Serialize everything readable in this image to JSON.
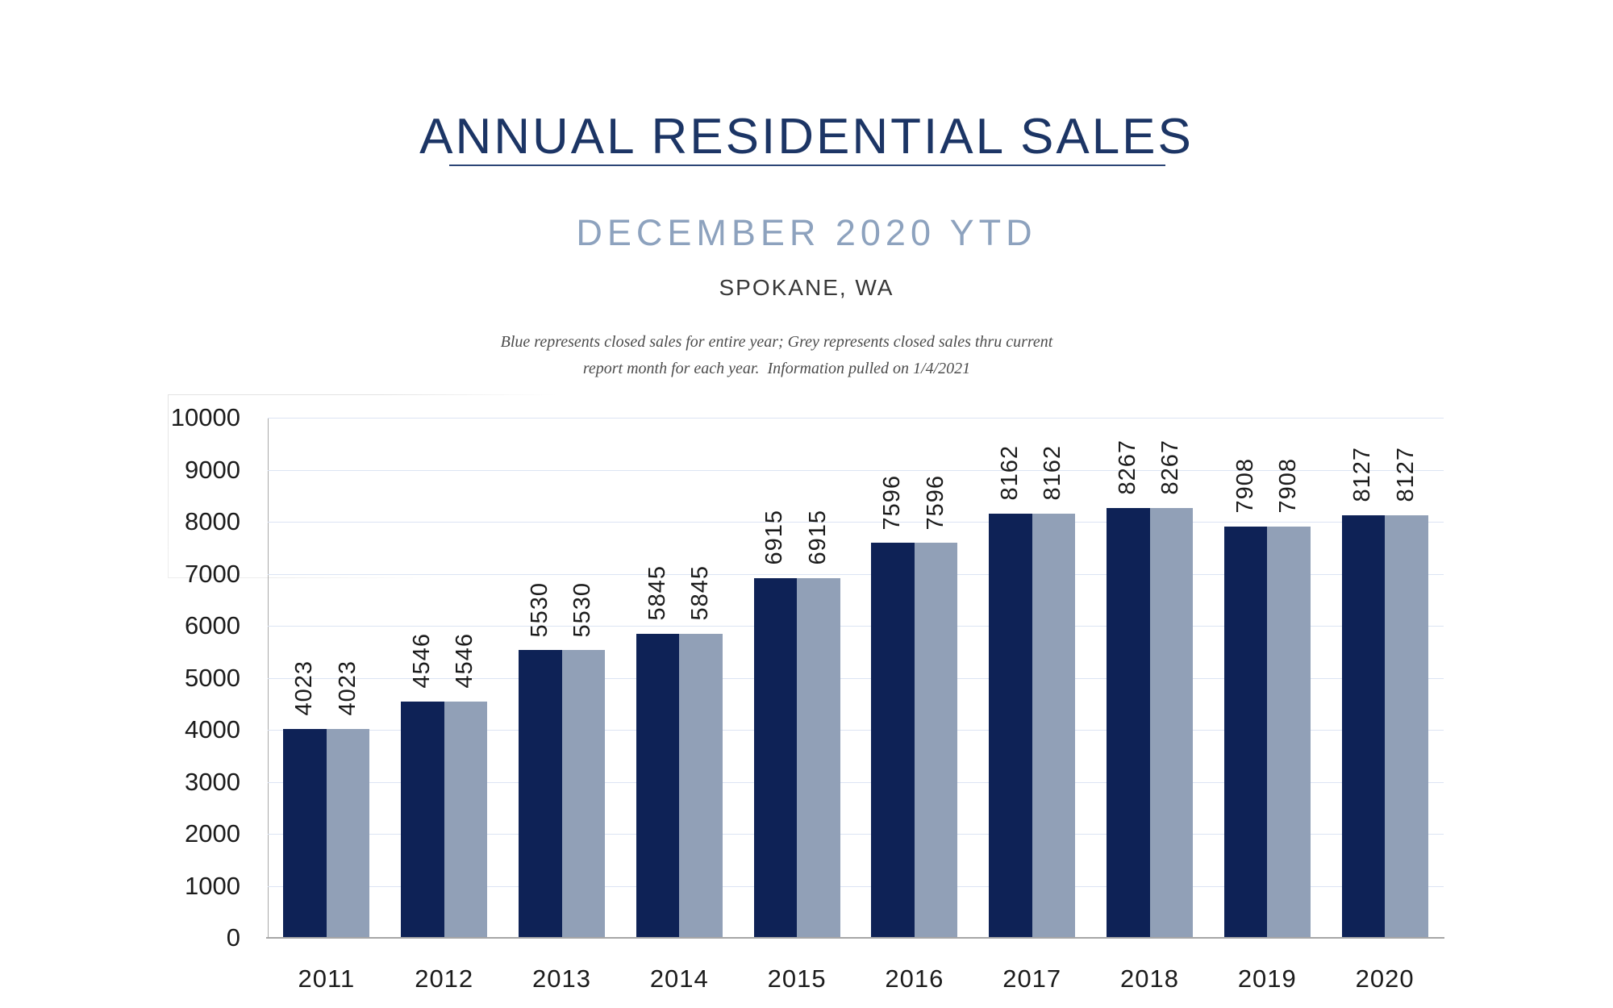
{
  "header": {
    "title": "ANNUAL RESIDENTIAL SALES",
    "subtitle": "DECEMBER 2020 YTD",
    "location": "SPOKANE, WA",
    "note_line1": "Blue represents closed sales for entire year; Grey represents closed sales thru current",
    "note_line2": "report month for each year.  Information pulled on 1/4/2021"
  },
  "colors": {
    "title_navy": "#1c3565",
    "subtitle_blue_grey": "#8da2be",
    "bar_navy": "#0e2256",
    "bar_grey": "#91a0b7",
    "gridline": "#dce4f3",
    "axis_line": "#a6a6a6",
    "tick_text": "#1b1b1b"
  },
  "chart_data": {
    "type": "bar",
    "title": "Annual Residential Sales, Spokane WA, December 2020 YTD",
    "categories": [
      "2011",
      "2012",
      "2013",
      "2014",
      "2015",
      "2016",
      "2017",
      "2018",
      "2019",
      "2020"
    ],
    "series": [
      {
        "name": "Closed sales for entire year (blue)",
        "color_key": "bar_navy",
        "values": [
          4023,
          4546,
          5530,
          5845,
          6915,
          7596,
          8162,
          8267,
          7908,
          8127
        ]
      },
      {
        "name": "Closed sales thru current report month (grey)",
        "color_key": "bar_grey",
        "values": [
          4023,
          4546,
          5530,
          5845,
          6915,
          7596,
          8162,
          8267,
          7908,
          8127
        ]
      }
    ],
    "xlabel": "",
    "ylabel": "",
    "ylim": [
      0,
      10000
    ],
    "ytick_step": 1000,
    "yticks": [
      "0",
      "1000",
      "2000",
      "3000",
      "4000",
      "5000",
      "6000",
      "7000",
      "8000",
      "9000",
      "10000"
    ],
    "grid": "horizontal",
    "legend_position": "none",
    "bar_value_labels": "rotated 90° above each bar"
  }
}
